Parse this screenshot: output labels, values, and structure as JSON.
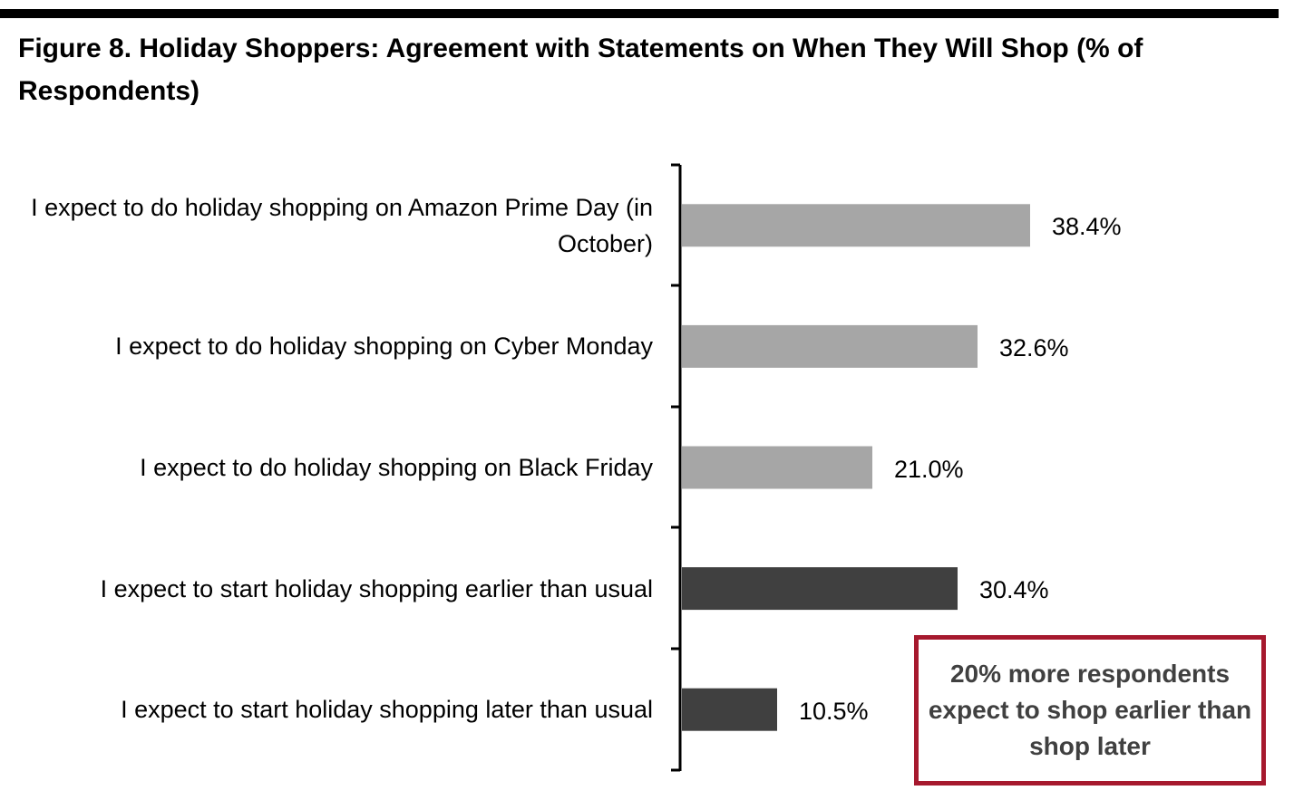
{
  "chart_data": {
    "type": "hbar",
    "title": "Figure 8. Holiday Shoppers: Agreement with Statements on When They Will Shop (% of Respondents)",
    "categories": [
      "I expect to do holiday shopping on Amazon Prime Day (in October)",
      "I expect to do holiday shopping on Cyber Monday",
      "I expect to do holiday shopping on Black Friday",
      "I expect to start holiday shopping earlier than usual",
      "I expect to start holiday shopping later than usual"
    ],
    "values": [
      38.4,
      32.6,
      21.0,
      30.4,
      10.5
    ],
    "value_labels": [
      "38.4%",
      "32.6%",
      "21.0%",
      "30.4%",
      "10.5%"
    ],
    "colors": [
      "#a6a6a6",
      "#a6a6a6",
      "#a6a6a6",
      "#404040",
      "#404040"
    ],
    "annotation": "20% more respondents expect to shop earlier than shop later"
  }
}
